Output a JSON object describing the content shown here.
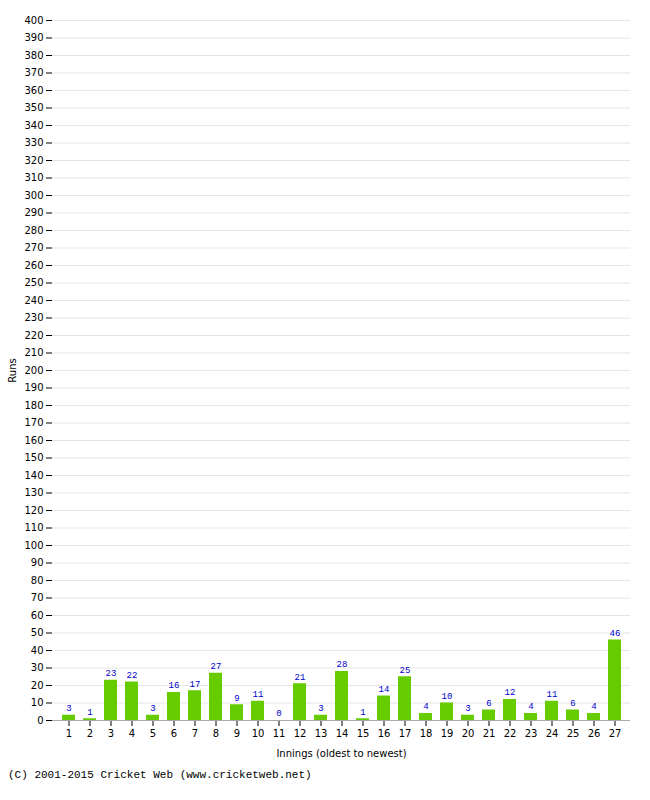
{
  "chart_data": {
    "type": "bar",
    "xlabel": "Innings (oldest to newest)",
    "ylabel": "Runs",
    "categories": [
      "1",
      "2",
      "3",
      "4",
      "5",
      "6",
      "7",
      "8",
      "9",
      "10",
      "11",
      "12",
      "13",
      "14",
      "15",
      "16",
      "17",
      "18",
      "19",
      "20",
      "21",
      "22",
      "23",
      "24",
      "25",
      "26",
      "27"
    ],
    "values": [
      3,
      1,
      23,
      22,
      3,
      16,
      17,
      27,
      9,
      11,
      0,
      21,
      3,
      28,
      1,
      14,
      25,
      4,
      10,
      3,
      6,
      12,
      4,
      11,
      6,
      4,
      46
    ],
    "color": "#66cc00",
    "ylim": [
      0,
      400
    ],
    "yticks": [
      0,
      10,
      20,
      30,
      40,
      50,
      60,
      70,
      80,
      90,
      100,
      110,
      120,
      130,
      140,
      150,
      160,
      170,
      180,
      190,
      200,
      210,
      220,
      230,
      240,
      250,
      260,
      270,
      280,
      290,
      300,
      310,
      320,
      330,
      340,
      350,
      360,
      370,
      380,
      390,
      400
    ],
    "grid": true,
    "data_labels": true,
    "annotations": [
      "(C) 2001-2015 Cricket Web (www.cricketweb.net)"
    ]
  }
}
